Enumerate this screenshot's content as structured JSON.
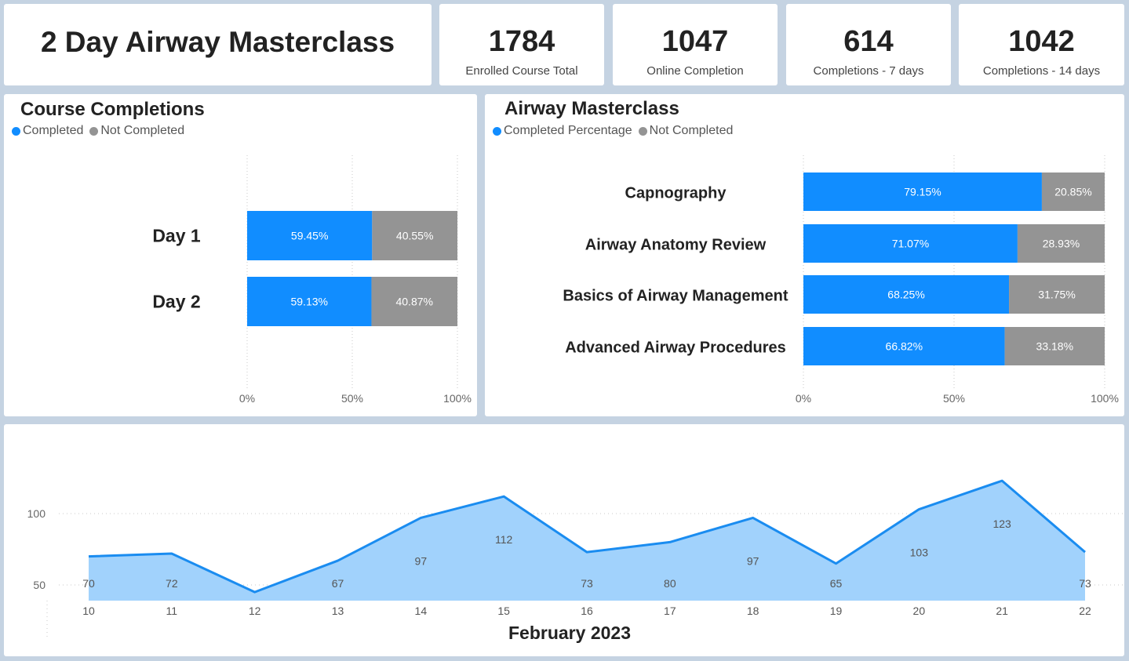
{
  "header": {
    "title": "2 Day Airway Masterclass"
  },
  "kpis": [
    {
      "value": "1784",
      "label": "Enrolled Course Total"
    },
    {
      "value": "1047",
      "label": "Online Completion"
    },
    {
      "value": "614",
      "label": "Completions - 7 days"
    },
    {
      "value": "1042",
      "label": "Completions - 14 days"
    }
  ],
  "colors": {
    "completed": "#118dff",
    "not_completed": "#949494",
    "area_fill": "#a1d2fc",
    "line": "#1a8cf0"
  },
  "chart_data": [
    {
      "type": "bar",
      "orientation": "horizontal-stacked-100",
      "title": "Course Completions",
      "legend_position": "top-left",
      "categories": [
        "Day 1",
        "Day 2"
      ],
      "series": [
        {
          "name": "Completed",
          "values": [
            59.45,
            59.13
          ],
          "labels": [
            "59.45%",
            "59.13%"
          ]
        },
        {
          "name": "Not Completed",
          "values": [
            40.55,
            40.87
          ],
          "labels": [
            "40.55%",
            "40.87%"
          ]
        }
      ],
      "xlim": [
        0,
        100
      ],
      "x_ticks": [
        "0%",
        "50%",
        "100%"
      ],
      "grid": true
    },
    {
      "type": "bar",
      "orientation": "horizontal-stacked-100",
      "title": "Airway Masterclass",
      "legend_position": "top-left",
      "categories": [
        "Capnography",
        "Airway Anatomy Review",
        "Basics of Airway Management",
        "Advanced Airway Procedures"
      ],
      "series": [
        {
          "name": "Completed Percentage",
          "values": [
            79.15,
            71.07,
            68.25,
            66.82
          ],
          "labels": [
            "79.15%",
            "71.07%",
            "68.25%",
            "66.82%"
          ]
        },
        {
          "name": "Not Completed",
          "values": [
            20.85,
            28.93,
            31.75,
            33.18
          ],
          "labels": [
            "20.85%",
            "28.93%",
            "31.75%",
            "33.18%"
          ]
        }
      ],
      "xlim": [
        0,
        100
      ],
      "x_ticks": [
        "0%",
        "50%",
        "100%"
      ],
      "grid": true
    },
    {
      "type": "area",
      "xlabel": "February 2023",
      "x": [
        10,
        11,
        12,
        13,
        14,
        15,
        16,
        17,
        18,
        19,
        20,
        21,
        22
      ],
      "x_labels": [
        "10",
        "11",
        "12",
        "13",
        "14",
        "15",
        "16",
        "17",
        "18",
        "19",
        "20",
        "21",
        "22"
      ],
      "values": [
        70,
        72,
        45,
        67,
        97,
        112,
        73,
        80,
        97,
        65,
        103,
        123,
        73
      ],
      "data_labels": [
        "70",
        "72",
        "",
        "67",
        "97",
        "112",
        "73",
        "80",
        "97",
        "65",
        "103",
        "123",
        "73"
      ],
      "y_ticks": [
        50,
        100
      ],
      "y_tick_labels": [
        "50",
        "100"
      ],
      "grid": true
    }
  ]
}
